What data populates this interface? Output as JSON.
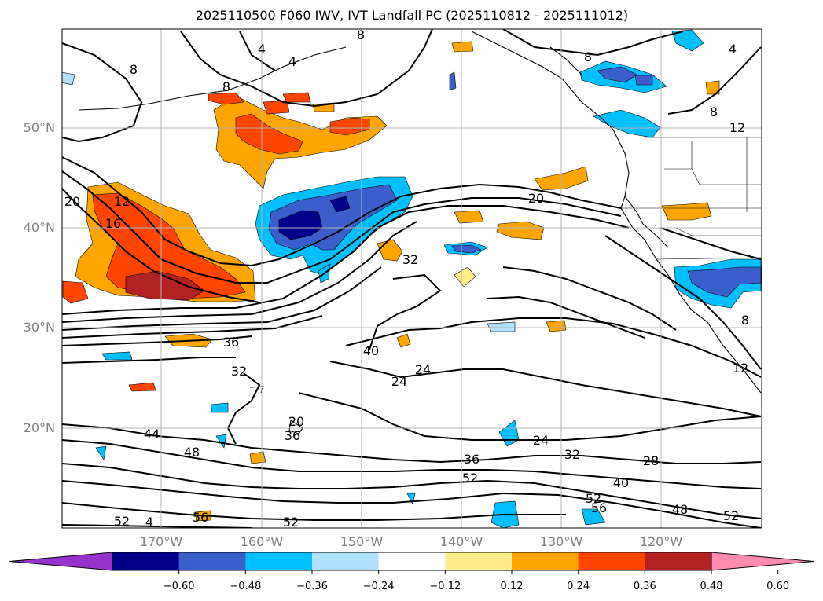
{
  "title": "2025110500 F060 IWV, IVT Landfall PC (2025110812 - 2025111012)",
  "map": {
    "lat_labels": [
      "50°N",
      "40°N",
      "30°N",
      "20°N"
    ],
    "lon_labels": [
      "170°W",
      "160°W",
      "150°W",
      "140°W",
      "130°W",
      "120°W"
    ],
    "contour_labels": [
      "8",
      "4",
      "4",
      "8",
      "8",
      "8",
      "4",
      "8",
      "12",
      "20",
      "12",
      "16",
      "20",
      "32",
      "36",
      "40",
      "24",
      "24",
      "32",
      "44",
      "48",
      "36",
      "20",
      "24",
      "36",
      "32",
      "28",
      "52",
      "40",
      "52",
      "56",
      "48",
      "52",
      "52",
      "56",
      "52",
      "4",
      "8",
      "12"
    ]
  },
  "colorbar": {
    "colors": [
      "#9932cc",
      "#00008b",
      "#3a5fcd",
      "#00bfff",
      "#b0e2ff",
      "#ffffff",
      "#ffec8b",
      "#ffa500",
      "#ff4500",
      "#b22222",
      "#ff8cb0"
    ],
    "ticks": [
      "−0.60",
      "−0.48",
      "−0.36",
      "−0.24",
      "−0.12",
      "0.12",
      "0.24",
      "0.36",
      "0.48",
      "0.60"
    ]
  }
}
